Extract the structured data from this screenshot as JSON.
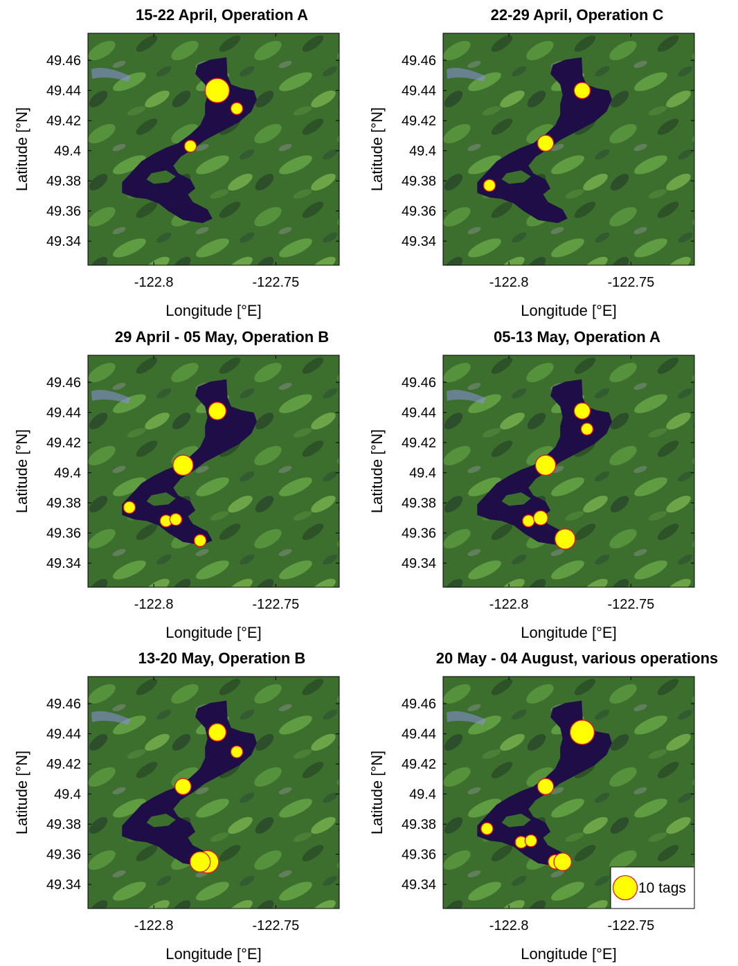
{
  "figure": {
    "xlabel": "Longitude [°E]",
    "ylabel": "Latitude [°N]",
    "xticks": [
      -122.8,
      -122.75
    ],
    "xtick_labels": [
      "-122.8",
      "-122.75"
    ],
    "yticks": [
      49.34,
      49.36,
      49.38,
      49.4,
      49.42,
      49.44,
      49.46
    ],
    "ytick_labels": [
      "49.34",
      "49.36",
      "49.38",
      "49.4",
      "49.42",
      "49.44",
      "49.46"
    ],
    "xlim": [
      -122.827,
      -122.724
    ],
    "ylim": [
      49.324,
      49.478
    ],
    "colors": {
      "marker_fill": "#ffff00",
      "marker_edge": "#e8121a",
      "water": "#1e0d46",
      "land": "#3c6f2e"
    },
    "legend": {
      "label": "10 tags",
      "tags": 10
    }
  },
  "chart_data": [
    {
      "type": "scatter",
      "title": "15-22 April, Operation A",
      "points": [
        {
          "x": -122.774,
          "y": 49.44,
          "tags": 10
        },
        {
          "x": -122.766,
          "y": 49.428,
          "tags": 1
        },
        {
          "x": -122.785,
          "y": 49.403,
          "tags": 1
        }
      ]
    },
    {
      "type": "scatter",
      "title": "22-29 April, Operation C",
      "points": [
        {
          "x": -122.77,
          "y": 49.44,
          "tags": 3
        },
        {
          "x": -122.785,
          "y": 49.405,
          "tags": 3
        },
        {
          "x": -122.808,
          "y": 49.377,
          "tags": 1
        }
      ]
    },
    {
      "type": "scatter",
      "title": "29 April - 05 May, Operation B",
      "points": [
        {
          "x": -122.774,
          "y": 49.441,
          "tags": 4
        },
        {
          "x": -122.788,
          "y": 49.405,
          "tags": 6
        },
        {
          "x": -122.81,
          "y": 49.377,
          "tags": 1
        },
        {
          "x": -122.795,
          "y": 49.368,
          "tags": 1
        },
        {
          "x": -122.791,
          "y": 49.369,
          "tags": 1
        },
        {
          "x": -122.781,
          "y": 49.355,
          "tags": 1
        }
      ]
    },
    {
      "type": "scatter",
      "title": "05-13 May, Operation A",
      "points": [
        {
          "x": -122.77,
          "y": 49.441,
          "tags": 3
        },
        {
          "x": -122.768,
          "y": 49.429,
          "tags": 1
        },
        {
          "x": -122.785,
          "y": 49.405,
          "tags": 6
        },
        {
          "x": -122.792,
          "y": 49.368,
          "tags": 1
        },
        {
          "x": -122.787,
          "y": 49.37,
          "tags": 2
        },
        {
          "x": -122.777,
          "y": 49.356,
          "tags": 6
        }
      ]
    },
    {
      "type": "scatter",
      "title": "13-20 May, Operation B",
      "points": [
        {
          "x": -122.774,
          "y": 49.441,
          "tags": 4
        },
        {
          "x": -122.766,
          "y": 49.428,
          "tags": 1
        },
        {
          "x": -122.788,
          "y": 49.405,
          "tags": 3
        },
        {
          "x": -122.778,
          "y": 49.355,
          "tags": 8
        },
        {
          "x": -122.781,
          "y": 49.355,
          "tags": 6
        }
      ]
    },
    {
      "type": "scatter",
      "title": "20 May - 04 August, various operations",
      "points": [
        {
          "x": -122.77,
          "y": 49.441,
          "tags": 10
        },
        {
          "x": -122.785,
          "y": 49.405,
          "tags": 3
        },
        {
          "x": -122.809,
          "y": 49.377,
          "tags": 1
        },
        {
          "x": -122.795,
          "y": 49.368,
          "tags": 1
        },
        {
          "x": -122.791,
          "y": 49.369,
          "tags": 1
        },
        {
          "x": -122.781,
          "y": 49.355,
          "tags": 2
        },
        {
          "x": -122.778,
          "y": 49.355,
          "tags": 4
        }
      ]
    }
  ]
}
